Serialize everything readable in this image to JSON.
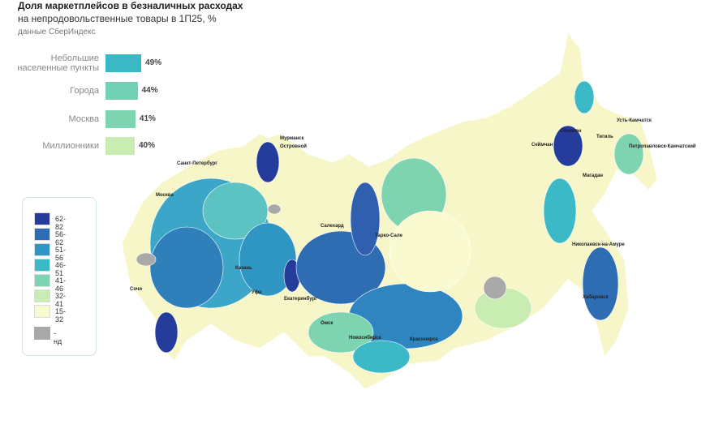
{
  "chart_data": {
    "type": "bar",
    "orientation": "horizontal",
    "title": "Доля маркетплейсов в безналичных расходах",
    "subtitle": "на непродовольственные товары в 1П25, %",
    "source": "данные СберИндекс",
    "categories": [
      "Небольшие населенные пункты",
      "Города",
      "Москва",
      "Миллионники"
    ],
    "values": [
      49,
      44,
      41,
      40
    ],
    "value_labels": [
      "49%",
      "44%",
      "41%",
      "40%"
    ],
    "colors": [
      "#3cb9c6",
      "#72d1b5",
      "#7ed3b1",
      "#c8ecb2"
    ]
  },
  "map_legend": {
    "bins": [
      {
        "label": "62-82",
        "color": "#263c9a"
      },
      {
        "label": "56-62",
        "color": "#2f6db3"
      },
      {
        "label": "51-56",
        "color": "#2f95c3"
      },
      {
        "label": "46-51",
        "color": "#3cb9c6"
      },
      {
        "label": "41-46",
        "color": "#7ed3b1"
      },
      {
        "label": "32-41",
        "color": "#c8ecb2"
      },
      {
        "label": "15-32",
        "color": "#fafad0"
      }
    ],
    "na": {
      "label": "- нд",
      "color": "#a9a9a9"
    }
  },
  "cities": [
    "Мурманск",
    "Островной",
    "Санкт-Петербург",
    "Москва",
    "Сочи",
    "Казань",
    "Уфа",
    "Екатеринбург",
    "Салехард",
    "Тарко-Сале",
    "Омск",
    "Новосибирск",
    "Красноярск",
    "Оймякон",
    "Сеймчан",
    "Магадан",
    "Тигиль",
    "Усть-Камчатск",
    "Петропавловск-Камчатский",
    "Николаевск-на-Амуре",
    "Хабаровск"
  ]
}
